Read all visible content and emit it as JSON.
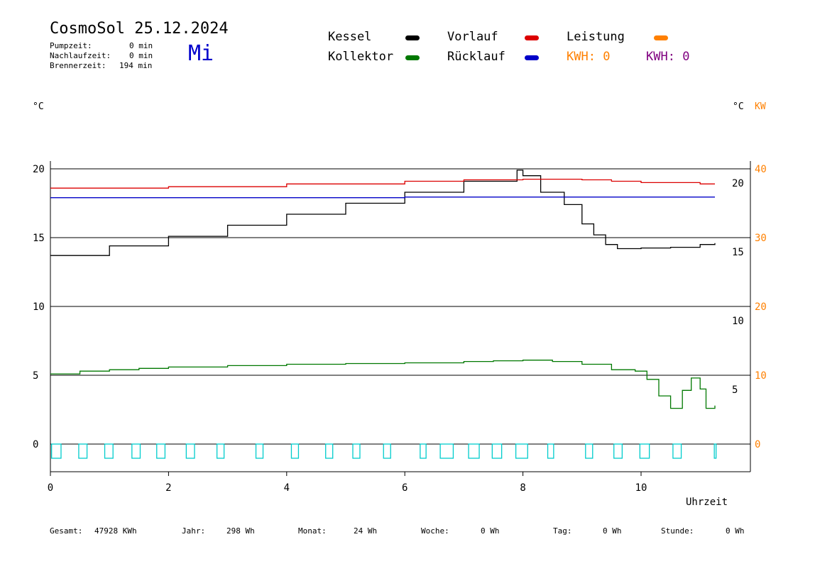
{
  "header": {
    "title": "CosmoSol 25.12.2024",
    "day": "Mi",
    "pumpzeit_label": "Pumpzeit:",
    "pumpzeit_value": "0 min",
    "nachlaufzeit_label": "Nachlaufzeit:",
    "nachlaufzeit_value": "0 min",
    "brennerzeit_label": "Brennerzeit:",
    "brennerzeit_value": "194 min"
  },
  "legend": {
    "kessel": "Kessel",
    "kollektor": "Kollektor",
    "vorlauf": "Vorlauf",
    "ruecklauf": "Rücklauf",
    "leistung": "Leistung",
    "kwh1_label": "KWH:",
    "kwh1_value": "0",
    "kwh2_label": "KWH:",
    "kwh2_value": "0"
  },
  "axis_units": {
    "left": "°C",
    "right_c": "°C",
    "right_kw": "KW",
    "x": "Uhrzeit"
  },
  "footer": {
    "gesamt_label": "Gesamt:",
    "gesamt_value": "47928 KWh",
    "jahr_label": "Jahr:",
    "jahr_value": "298 Wh",
    "monat_label": "Monat:",
    "monat_value": "24 Wh",
    "woche_label": "Woche:",
    "woche_value": "0 Wh",
    "tag_label": "Tag:",
    "tag_value": "0 Wh",
    "stunde_label": "Stunde:",
    "stunde_value": "0 Wh"
  },
  "colors": {
    "kessel": "#000000",
    "kollektor": "#007800",
    "vorlauf": "#dc0000",
    "ruecklauf": "#0000c8",
    "leistung": "#ff8000",
    "kwh2": "#800080",
    "pump": "#00cccc",
    "day": "#0000cc"
  },
  "chart_data": {
    "type": "line",
    "xlim": [
      0,
      11.8
    ],
    "ylim": [
      -2,
      21
    ],
    "x_ticks": [
      "0",
      "2",
      "4",
      "6",
      "8",
      "10"
    ],
    "left_ticks": [
      "0",
      "5",
      "10",
      "15",
      "20"
    ],
    "right_ticks_c": [
      "5",
      "10",
      "15",
      "20"
    ],
    "right_ticks_kw": [
      "0",
      "10",
      "20",
      "30",
      "40"
    ],
    "series": [
      {
        "name": "Kessel",
        "color": "#000000",
        "x": [
          0,
          1,
          2,
          3,
          4,
          5,
          6,
          7,
          7.9,
          8.0,
          8.3,
          8.7,
          9.0,
          9.2,
          9.4,
          9.6,
          10,
          10.5,
          11,
          11.25
        ],
        "y": [
          13.7,
          14.4,
          15.1,
          15.9,
          16.7,
          17.5,
          18.3,
          19.1,
          19.9,
          19.5,
          18.3,
          17.4,
          16.0,
          15.2,
          14.5,
          14.2,
          14.25,
          14.3,
          14.5,
          14.6
        ]
      },
      {
        "name": "Vorlauf",
        "color": "#dc0000",
        "x": [
          0,
          2,
          4,
          6,
          7,
          8,
          9,
          9.5,
          10,
          11,
          11.25
        ],
        "y": [
          18.6,
          18.7,
          18.9,
          19.1,
          19.2,
          19.25,
          19.2,
          19.1,
          19.0,
          18.9,
          18.9
        ]
      },
      {
        "name": "Rücklauf",
        "color": "#0000c8",
        "x": [
          0,
          2,
          4,
          6,
          8,
          10,
          11.25
        ],
        "y": [
          17.9,
          17.9,
          17.9,
          17.95,
          17.95,
          17.95,
          17.95
        ]
      },
      {
        "name": "Kollektor",
        "color": "#007800",
        "x": [
          0,
          0.5,
          1,
          1.5,
          2,
          3,
          4,
          5,
          6,
          7,
          7.5,
          8,
          8.5,
          9,
          9.5,
          9.9,
          10.1,
          10.3,
          10.5,
          10.7,
          10.85,
          11.0,
          11.1,
          11.25
        ],
        "y": [
          5.1,
          5.3,
          5.4,
          5.5,
          5.6,
          5.7,
          5.8,
          5.85,
          5.9,
          6.0,
          6.05,
          6.1,
          6.0,
          5.8,
          5.4,
          5.3,
          4.7,
          3.5,
          2.6,
          3.9,
          4.8,
          4.0,
          2.6,
          2.8
        ]
      }
    ],
    "pump_intervals": [
      [
        0.02,
        0.18
      ],
      [
        0.48,
        0.62
      ],
      [
        0.92,
        1.06
      ],
      [
        1.38,
        1.52
      ],
      [
        1.8,
        1.94
      ],
      [
        2.3,
        2.44
      ],
      [
        2.82,
        2.94
      ],
      [
        3.48,
        3.6
      ],
      [
        4.08,
        4.2
      ],
      [
        4.66,
        4.78
      ],
      [
        5.12,
        5.24
      ],
      [
        5.64,
        5.76
      ],
      [
        6.26,
        6.36
      ],
      [
        6.6,
        6.82
      ],
      [
        7.08,
        7.26
      ],
      [
        7.48,
        7.64
      ],
      [
        7.88,
        8.08
      ],
      [
        8.42,
        8.52
      ],
      [
        9.06,
        9.18
      ],
      [
        9.54,
        9.68
      ],
      [
        9.98,
        10.14
      ],
      [
        10.54,
        10.68
      ],
      [
        11.24,
        11.27
      ]
    ]
  }
}
